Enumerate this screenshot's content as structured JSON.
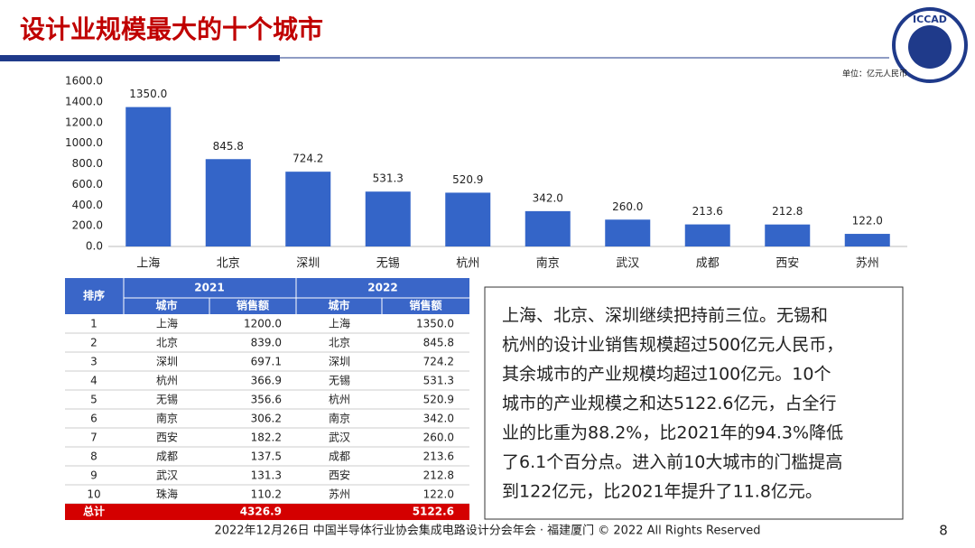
{
  "header": {
    "title": "设计业规模最大的十个城市",
    "logo": "ICCAD"
  },
  "chart_data": {
    "type": "bar",
    "unit_label": "单位：亿元人民币",
    "categories": [
      "上海",
      "北京",
      "深圳",
      "无锡",
      "杭州",
      "南京",
      "武汉",
      "成都",
      "西安",
      "苏州"
    ],
    "values": [
      1350,
      845.8,
      724.2,
      531.3,
      520.9,
      342,
      260,
      213.6,
      212.8,
      122
    ],
    "value_labels": [
      "1350.0",
      "845.8",
      "724.2",
      "531.3",
      "520.9",
      "342.0",
      "260.0",
      "213.6",
      "212.8",
      "122.0"
    ],
    "color": "#3465c8",
    "grid": false,
    "ylim": [
      0,
      1600
    ],
    "yticks": [
      {
        "value": 0,
        "label": "0.0"
      },
      {
        "value": 200,
        "label": "200.0"
      },
      {
        "value": 400,
        "label": "400.0"
      },
      {
        "value": 600,
        "label": "600.0"
      },
      {
        "value": 800,
        "label": "800.0"
      },
      {
        "value": 1000,
        "label": "1000.0"
      },
      {
        "value": 1200,
        "label": "1200.0"
      },
      {
        "value": 1400,
        "label": "1400.0"
      },
      {
        "value": 1600,
        "label": "1600.0"
      }
    ]
  },
  "table": {
    "rank_header": "排序",
    "years": [
      "2021",
      "2022"
    ],
    "columns": [
      "城市",
      "销售额",
      "城市",
      "销售额"
    ],
    "rows": [
      [
        "1",
        "上海",
        "1200.0",
        "上海",
        "1350.0"
      ],
      [
        "2",
        "北京",
        "839.0",
        "北京",
        "845.8"
      ],
      [
        "3",
        "深圳",
        "697.1",
        "深圳",
        "724.2"
      ],
      [
        "4",
        "杭州",
        "366.9",
        "无锡",
        "531.3"
      ],
      [
        "5",
        "无锡",
        "356.6",
        "杭州",
        "520.9"
      ],
      [
        "6",
        "南京",
        "306.2",
        "南京",
        "342.0"
      ],
      [
        "7",
        "西安",
        "182.2",
        "武汉",
        "260.0"
      ],
      [
        "8",
        "成都",
        "137.5",
        "成都",
        "213.6"
      ],
      [
        "9",
        "武汉",
        "131.3",
        "西安",
        "212.8"
      ],
      [
        "10",
        "珠海",
        "110.2",
        "苏州",
        "122.0"
      ]
    ],
    "total": [
      "总计",
      "4326.9",
      "5122.6"
    ]
  },
  "text": {
    "lines": [
      "上海、北京、深圳继续把持前三位。无锡和",
      "杭州的设计业销售规模超过500亿元人民币，",
      "其余城市的产业规模均超过100亿元。10个",
      "城市的产业规模之和达5122.6亿元，占全行",
      "业的比重为88.2%，比2021年的94.3%降低",
      "了6.1个百分点。进入前10大城市的门槛提高",
      "到122亿元，比2021年提升了11.8亿元。"
    ]
  },
  "footer": {
    "text": "2022年12月26日 中国半导体行业协会集成电路设计分会年会 · 福建厦门 © 2022 All Rights Reserved",
    "page": "8"
  }
}
